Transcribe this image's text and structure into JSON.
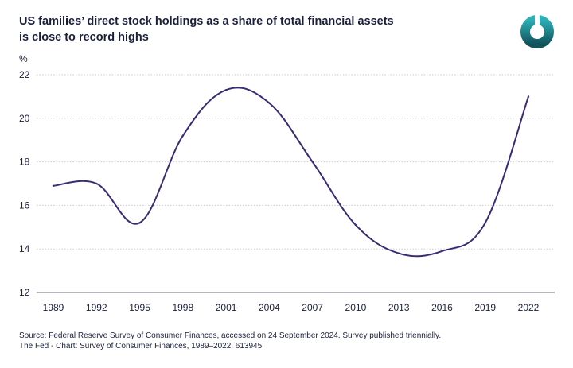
{
  "header": {
    "title_line1": "US families’ direct stock holdings as a share of total financial assets",
    "title_line2": "is close to record highs"
  },
  "logo": {
    "icon": "brand-ring-logo",
    "color_top": "#2bb0b6",
    "color_bottom": "#12545c"
  },
  "footer": {
    "source": "Source: Federal Reserve Survey of Consumer Finances, accessed on 24 September 2024. Survey published triennially.",
    "credit": "The Fed - Chart: Survey of Consumer Finances, 1989–2022. 613945"
  },
  "chart_data": {
    "type": "line",
    "ylabel": "%",
    "ylim": [
      12,
      22
    ],
    "yticks": [
      12,
      14,
      16,
      18,
      20,
      22
    ],
    "grid": true,
    "categories": [
      "1989",
      "1992",
      "1995",
      "1998",
      "2001",
      "2004",
      "2007",
      "2010",
      "2013",
      "2016",
      "2019",
      "2022"
    ],
    "series": [
      {
        "values": [
          16.9,
          17.0,
          15.2,
          19.2,
          21.3,
          20.7,
          18.0,
          15.1,
          13.8,
          13.9,
          15.2,
          21.0
        ],
        "color": "#3b2a73"
      }
    ]
  }
}
